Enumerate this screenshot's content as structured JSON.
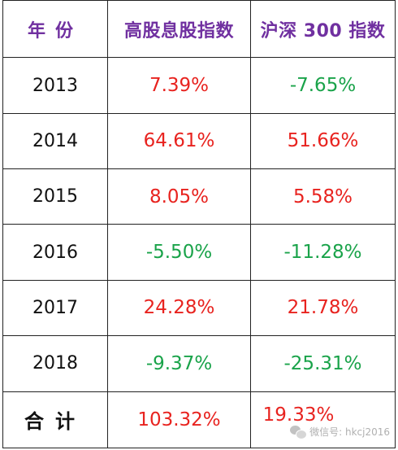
{
  "table": {
    "headers": {
      "year": "年份",
      "dividend_index": "高股息股指数",
      "csi300": "沪深 300 指数"
    },
    "rows": [
      {
        "year": "2013",
        "dividend": "7.39%",
        "csi300": "-7.65%"
      },
      {
        "year": "2014",
        "dividend": "64.61%",
        "csi300": "51.66%"
      },
      {
        "year": "2015",
        "dividend": "8.05%",
        "csi300": "5.58%"
      },
      {
        "year": "2016",
        "dividend": "-5.50%",
        "csi300": "-11.28%"
      },
      {
        "year": "2017",
        "dividend": "24.28%",
        "csi300": "21.78%"
      },
      {
        "year": "2018",
        "dividend": "-9.37%",
        "csi300": "-25.31%"
      }
    ],
    "total": {
      "label": "合计",
      "dividend": "103.32%",
      "csi300": "19.33%"
    }
  },
  "watermark": {
    "text": "微信号: hkcj2016",
    "icon": "wechat-icon"
  },
  "colors": {
    "header": "#7030a0",
    "positive": "#e8231f",
    "negative": "#1aa34a",
    "border": "#222222"
  }
}
